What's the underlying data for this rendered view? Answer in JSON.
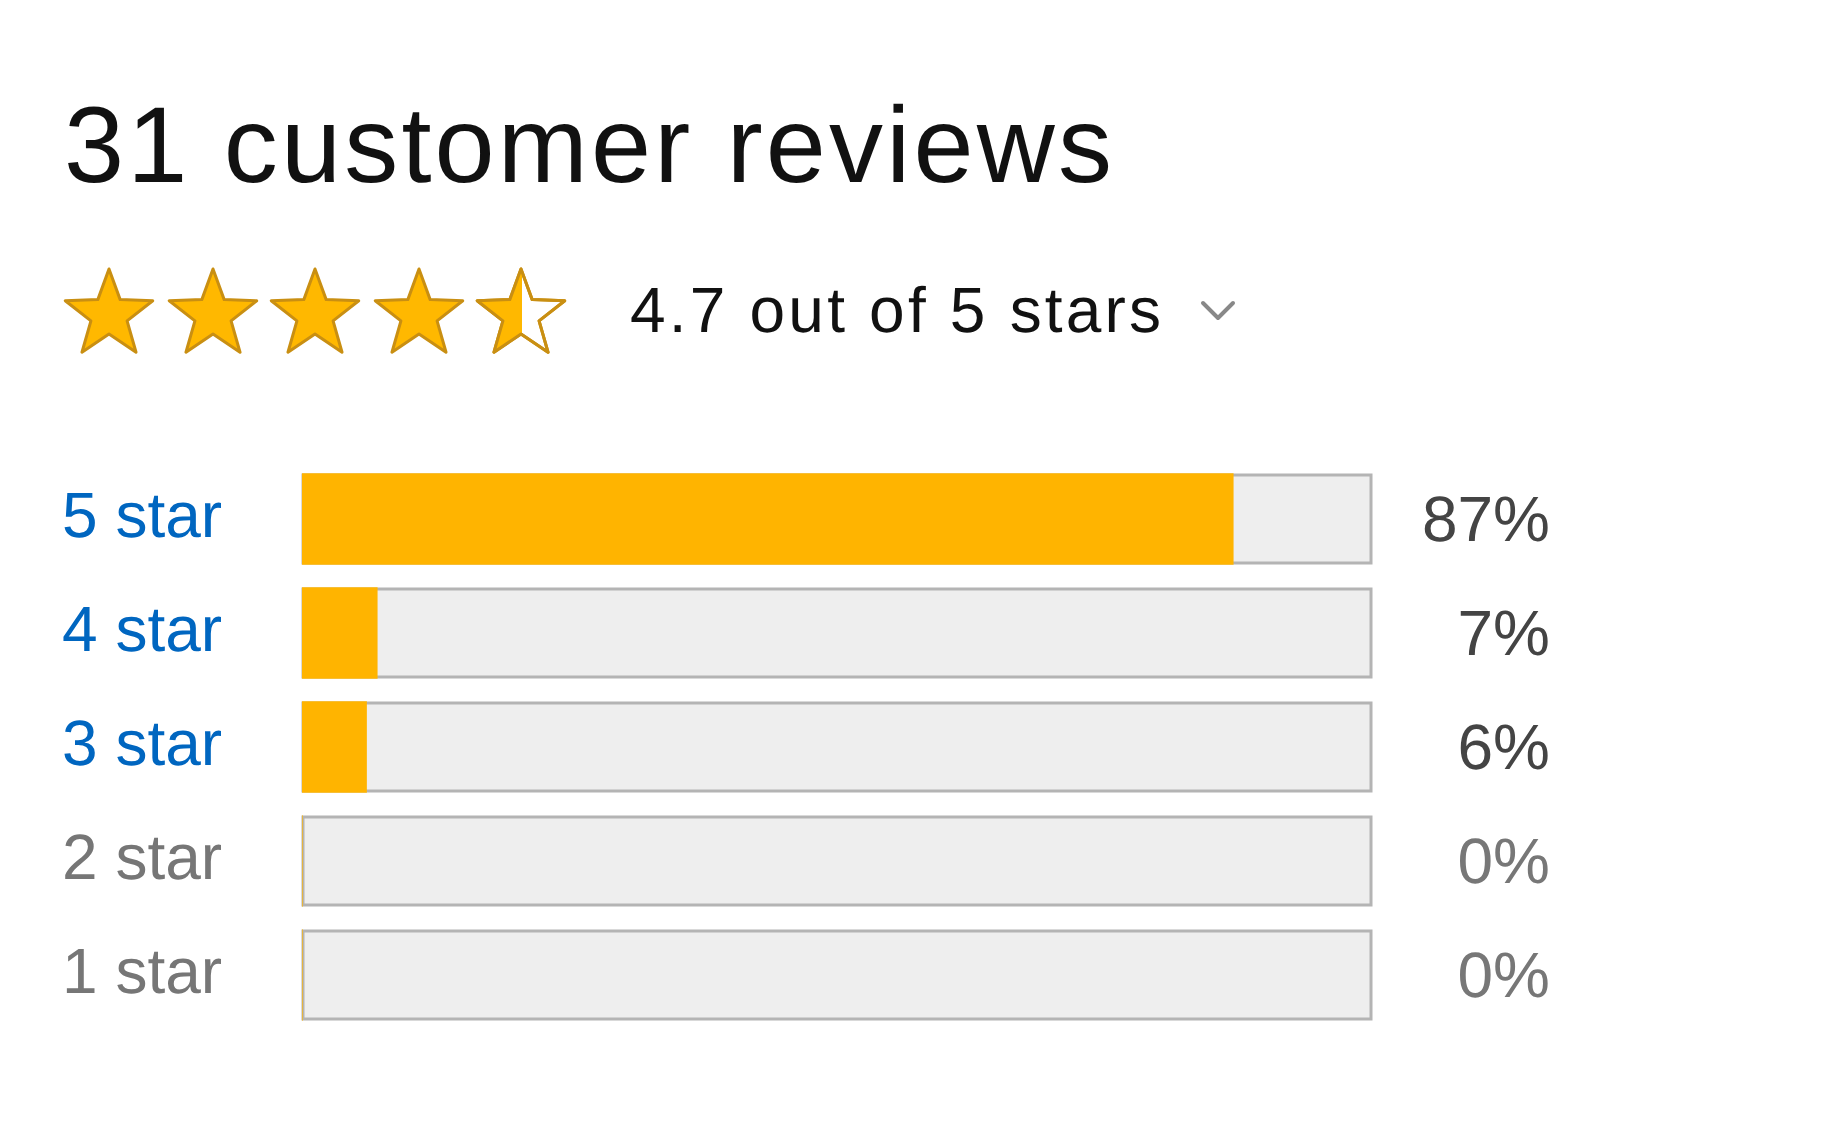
{
  "chart_data": {
    "type": "bar",
    "orientation": "horizontal",
    "title": "31 customer reviews",
    "subtitle": "4.7 out of 5 stars",
    "categories": [
      "5 star",
      "4 star",
      "3 star",
      "2 star",
      "1 star"
    ],
    "values": [
      87,
      7,
      6,
      0,
      0
    ],
    "color": "#ffb400",
    "xlim": [
      0,
      100
    ],
    "value_labels": [
      "87%",
      "7%",
      "6%",
      "0%",
      "0%"
    ],
    "tick_labels": "y"
  }
}
